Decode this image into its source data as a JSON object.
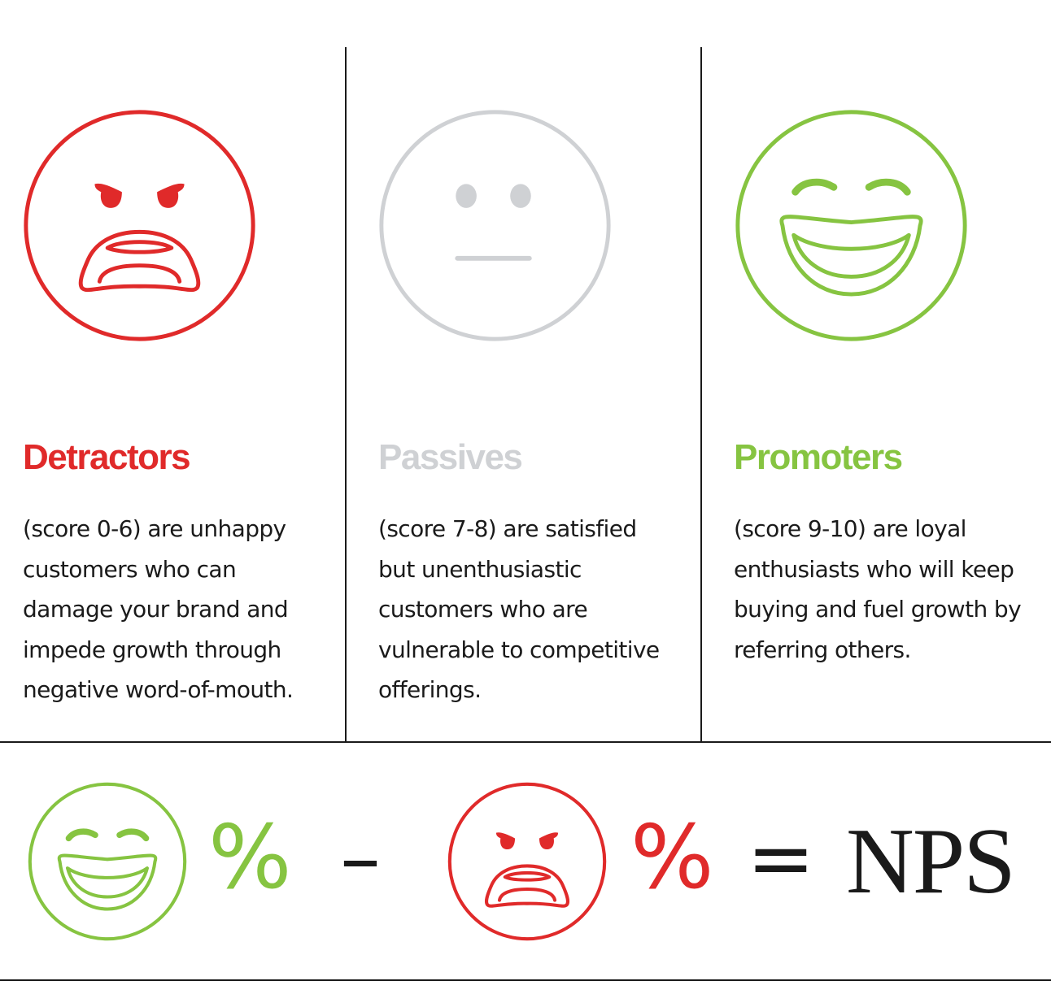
{
  "colors": {
    "detractor": "#e02a2a",
    "passive": "#cfd1d4",
    "promoter": "#86c441",
    "text": "#1a1a1a"
  },
  "categories": [
    {
      "key": "detractors",
      "title": "Detractors",
      "icon": "angry-face-icon",
      "desc_lines": [
        "(score 0-6) are unhappy",
        "customers who can",
        "damage your brand and",
        "impede growth through",
        "negative word-of-mouth."
      ]
    },
    {
      "key": "passives",
      "title": "Passives",
      "icon": "neutral-face-icon",
      "desc_lines": [
        "(score 7-8) are satisfied",
        "but unenthusiastic",
        "customers who are",
        "vulnerable to competitive",
        "offerings."
      ]
    },
    {
      "key": "promoters",
      "title": "Promoters",
      "icon": "laughing-face-icon",
      "desc_lines": [
        "(score 9-10) are loyal",
        "enthusiasts who will keep",
        "buying and fuel growth by",
        "referring others."
      ]
    }
  ],
  "formula": {
    "promoter_icon": "laughing-face-icon",
    "promoter_pct": "%",
    "minus": "–",
    "detractor_icon": "angry-face-icon",
    "detractor_pct": "%",
    "equals": "=",
    "result": "NPS"
  }
}
